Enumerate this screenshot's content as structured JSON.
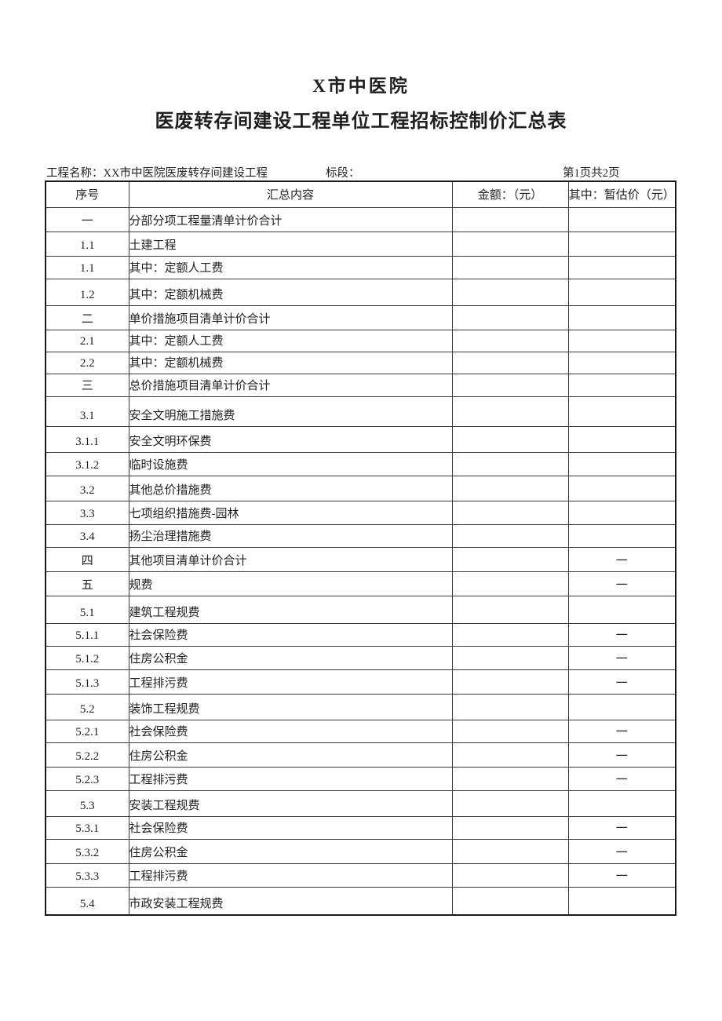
{
  "page": {
    "title": "X市中医院",
    "subtitle": "医废转存间建设工程单位工程招标控制价汇总表"
  },
  "meta": {
    "project_label": "工程名称：XX市中医院医废转存间建设工程",
    "section_label": "标段：",
    "page_info": "第1页共2页"
  },
  "table": {
    "headers": {
      "no": "序号",
      "content": "汇总内容",
      "amount": "金额：（元）",
      "provisional": "其中：暂估价（元）"
    },
    "rows": [
      {
        "no": "一",
        "content": "分部分项工程量清单计价合计",
        "amount": "",
        "provisional": ""
      },
      {
        "no": "1.1",
        "content": "土建工程",
        "amount": "",
        "provisional": ""
      },
      {
        "no": "1.1",
        "content": "其中：定额人工费",
        "amount": "",
        "provisional": ""
      },
      {
        "no": "1.2",
        "content": "其中：定额机械费",
        "amount": "",
        "provisional": ""
      },
      {
        "no": "二",
        "content": "单价措施项目清单计价合计",
        "amount": "",
        "provisional": ""
      },
      {
        "no": "2.1",
        "content": "其中：定额人工费",
        "amount": "",
        "provisional": ""
      },
      {
        "no": "2.2",
        "content": "其中：定额机械费",
        "amount": "",
        "provisional": ""
      },
      {
        "no": "三",
        "content": "总价措施项目清单计价合计",
        "amount": "",
        "provisional": ""
      },
      {
        "no": "3.1",
        "content": "安全文明施工措施费",
        "amount": "",
        "provisional": ""
      },
      {
        "no": "3.1.1",
        "content": "安全文明环保费",
        "amount": "",
        "provisional": ""
      },
      {
        "no": "3.1.2",
        "content": "临时设施费",
        "amount": "",
        "provisional": ""
      },
      {
        "no": "3.2",
        "content": "其他总价措施费",
        "amount": "",
        "provisional": ""
      },
      {
        "no": "3.3",
        "content": "七项组织措施费-园林",
        "amount": "",
        "provisional": ""
      },
      {
        "no": "3.4",
        "content": "扬尘治理措施费",
        "amount": "",
        "provisional": ""
      },
      {
        "no": "四",
        "content": "其他项目清单计价合计",
        "amount": "",
        "provisional": "一"
      },
      {
        "no": "五",
        "content": "规费",
        "amount": "",
        "provisional": "一"
      },
      {
        "no": "5.1",
        "content": "建筑工程规费",
        "amount": "",
        "provisional": ""
      },
      {
        "no": "5.1.1",
        "content": "社会保险费",
        "amount": "",
        "provisional": "一"
      },
      {
        "no": "5.1.2",
        "content": "住房公积金",
        "amount": "",
        "provisional": "一"
      },
      {
        "no": "5.1.3",
        "content": "工程排污费",
        "amount": "",
        "provisional": "一"
      },
      {
        "no": "5.2",
        "content": "装饰工程规费",
        "amount": "",
        "provisional": ""
      },
      {
        "no": "5.2.1",
        "content": "社会保险费",
        "amount": "",
        "provisional": "一"
      },
      {
        "no": "5.2.2",
        "content": "住房公积金",
        "amount": "",
        "provisional": "一"
      },
      {
        "no": "5.2.3",
        "content": "工程排污费",
        "amount": "",
        "provisional": "一"
      },
      {
        "no": "5.3",
        "content": "安装工程规费",
        "amount": "",
        "provisional": ""
      },
      {
        "no": "5.3.1",
        "content": "社会保险费",
        "amount": "",
        "provisional": "一"
      },
      {
        "no": "5.3.2",
        "content": "住房公积金",
        "amount": "",
        "provisional": "一"
      },
      {
        "no": "5.3.3",
        "content": "工程排污费",
        "amount": "",
        "provisional": "一"
      },
      {
        "no": "5.4",
        "content": "市政安装工程规费",
        "amount": "",
        "provisional": ""
      }
    ]
  },
  "colors": {
    "text": "#1f1f1f",
    "grid_line": "#3c3c3c",
    "outer_border": "#1a1a1a",
    "background": "#ffffff"
  }
}
